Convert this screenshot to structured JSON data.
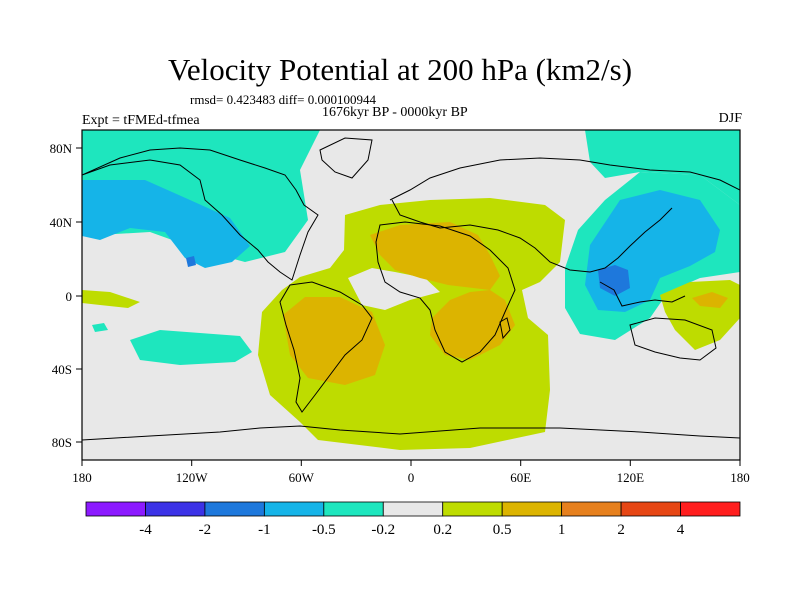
{
  "title": "Velocity Potential at 200 hPa (km2/s)",
  "stats": "rmsd= 0.423483 diff= 0.000100944",
  "experiment": "Expt = tFMEd-tfmea",
  "period": "1676kyr BP - 0000kyr BP",
  "season": "DJF",
  "map": {
    "lon_ticks": [
      "180",
      "120W",
      "60W",
      "0",
      "60E",
      "120E",
      "180"
    ],
    "lat_ticks": [
      "80N",
      "40N",
      "0",
      "40S",
      "80S"
    ]
  },
  "colorbar": {
    "labels": [
      "-4",
      "-2",
      "-1",
      "-0.5",
      "-0.2",
      "0.2",
      "0.5",
      "1",
      "2",
      "4"
    ],
    "colors": [
      "#8c1aff",
      "#3c32e6",
      "#1e78dc",
      "#15b4e8",
      "#1ee6be",
      "#e8e8e8",
      "#bedc00",
      "#dcb400",
      "#e6801e",
      "#e64614",
      "#ff1e1e"
    ]
  }
}
